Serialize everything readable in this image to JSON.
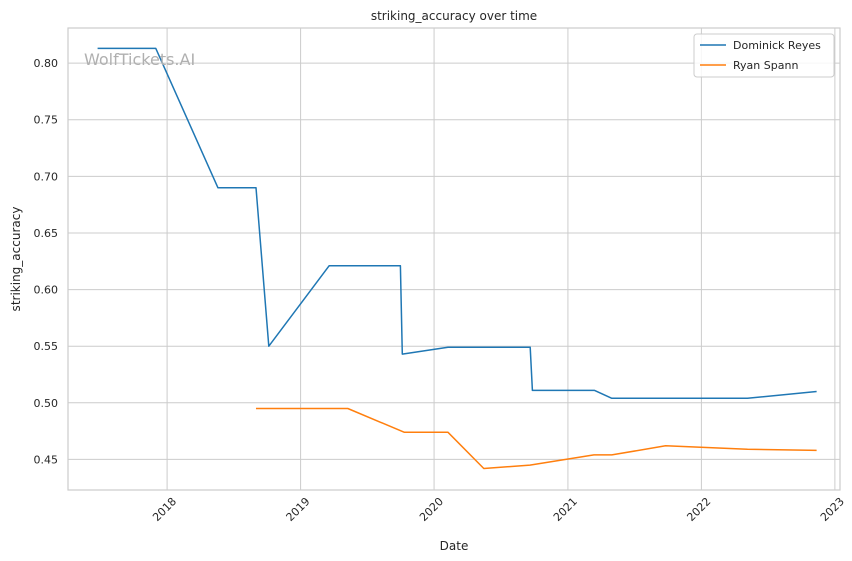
{
  "watermark": "WolfTickets.AI",
  "chart_data": {
    "type": "line",
    "title": "striking_accuracy over time",
    "xlabel": "Date",
    "ylabel": "striking_accuracy",
    "x_ticks": [
      "2018",
      "2019",
      "2020",
      "2021",
      "2022",
      "2023"
    ],
    "y_ticks": [
      "0.45",
      "0.50",
      "0.55",
      "0.60",
      "0.65",
      "0.70",
      "0.75",
      "0.80"
    ],
    "xlim": [
      "2017-04-05",
      "2023-01-15"
    ],
    "ylim": [
      0.423,
      0.831
    ],
    "grid": true,
    "legend_position": "top-right",
    "series": [
      {
        "name": "Dominick Reyes",
        "color": "#1f77b4",
        "points": [
          [
            "2017-06-25",
            0.813
          ],
          [
            "2017-12-01",
            0.813
          ],
          [
            "2018-05-20",
            0.69
          ],
          [
            "2018-09-01",
            0.69
          ],
          [
            "2018-10-06",
            0.55
          ],
          [
            "2019-03-20",
            0.621
          ],
          [
            "2019-10-01",
            0.621
          ],
          [
            "2019-10-06",
            0.543
          ],
          [
            "2020-02-08",
            0.549
          ],
          [
            "2020-09-20",
            0.549
          ],
          [
            "2020-09-26",
            0.511
          ],
          [
            "2021-03-15",
            0.511
          ],
          [
            "2021-05-01",
            0.504
          ],
          [
            "2022-05-07",
            0.504
          ],
          [
            "2022-11-12",
            0.51
          ]
        ]
      },
      {
        "name": "Ryan Spann",
        "color": "#ff7f0e",
        "points": [
          [
            "2018-09-01",
            0.495
          ],
          [
            "2019-05-10",
            0.495
          ],
          [
            "2019-10-12",
            0.474
          ],
          [
            "2020-02-08",
            0.474
          ],
          [
            "2020-05-16",
            0.442
          ],
          [
            "2020-09-19",
            0.445
          ],
          [
            "2021-03-13",
            0.454
          ],
          [
            "2021-05-01",
            0.454
          ],
          [
            "2021-09-25",
            0.462
          ],
          [
            "2022-05-07",
            0.459
          ],
          [
            "2022-11-12",
            0.458
          ]
        ]
      }
    ]
  }
}
